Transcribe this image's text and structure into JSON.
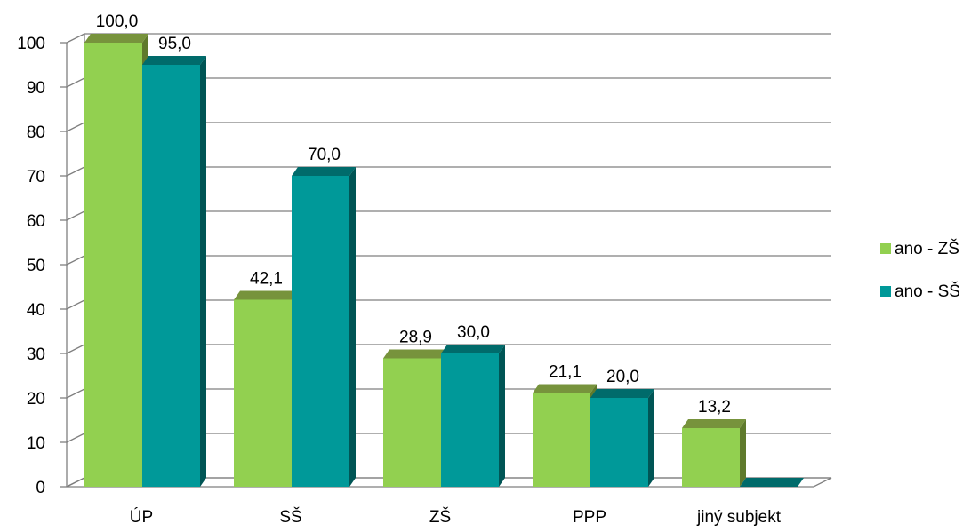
{
  "chart_data": {
    "type": "bar",
    "categories": [
      "ÚP",
      "SŠ",
      "ZŠ",
      "PPP",
      "jiný subjekt"
    ],
    "series": [
      {
        "name": "ano - ZŠ",
        "values": [
          100.0,
          42.1,
          28.9,
          21.1,
          13.2
        ],
        "labels": [
          "100,0",
          "42,1",
          "28,9",
          "21,1",
          "13,2"
        ]
      },
      {
        "name": "ano - SŠ",
        "values": [
          95.0,
          70.0,
          30.0,
          20.0,
          0
        ],
        "labels": [
          "95,0",
          "70,0",
          "30,0",
          "20,0",
          ""
        ]
      }
    ],
    "title": "",
    "xlabel": "",
    "ylabel": "",
    "ylim": [
      0,
      100
    ],
    "yticks": [
      "0",
      "10",
      "20",
      "30",
      "40",
      "50",
      "60",
      "70",
      "80",
      "90",
      "100"
    ],
    "grid": true,
    "legend_position": "right",
    "style": "3d-clustered-column",
    "colors": {
      "ano - ZŠ": {
        "front": "#92d050",
        "top": "#77933c",
        "side": "#5f7a2c"
      },
      "ano - SŠ": {
        "front": "#009999",
        "top": "#006b6b",
        "side": "#005555"
      },
      "grid": "#7f7f7f",
      "wall": "#ffffff",
      "floor_edge": "#7f7f7f"
    }
  }
}
